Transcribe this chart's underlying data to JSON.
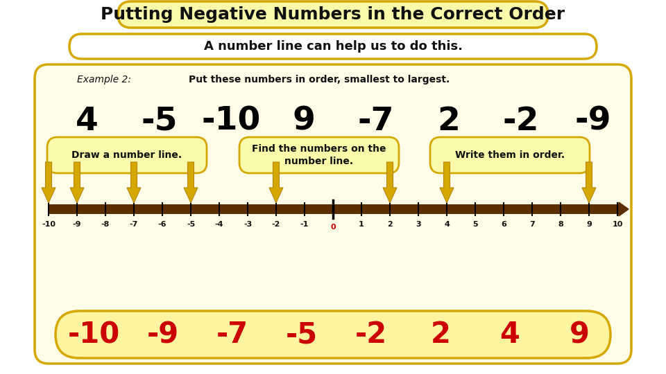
{
  "title": "Putting Negative Numbers in the Correct Order",
  "subtitle": "A number line can help us to do this.",
  "example_label": "Example 2:",
  "example_text": "Put these numbers in order, smallest to largest.",
  "numbers_to_order": [
    "4",
    "-5",
    "-10",
    "9",
    "-7",
    "2",
    "-2",
    "-9"
  ],
  "step1": "Draw a number line.",
  "step2": "Find the numbers on the\nnumber line.",
  "step3": "Write them in order.",
  "number_line_range": [
    -10,
    10
  ],
  "highlighted_numbers": [
    -10,
    -9,
    -7,
    -5,
    -2,
    2,
    4,
    9
  ],
  "answer_numbers": [
    "-10",
    "-9",
    "-7",
    "-5",
    "-2",
    "2",
    "4",
    "9"
  ],
  "bg_color": "#FFFFFF",
  "title_box_fill": "#FAFAAA",
  "title_box_edge": "#D4A800",
  "subtitle_box_fill": "#FFFFFF",
  "subtitle_box_edge": "#D4A800",
  "main_box_fill": "#FFFDE8",
  "main_box_edge": "#D4A800",
  "step_box_fill": "#FAFAAA",
  "step_box_edge": "#D4A800",
  "answer_box_fill": "#FFF5A0",
  "answer_box_edge": "#D4A800",
  "arrow_fill": "#D4A800",
  "arrow_edge": "#B8860B",
  "number_line_color": "#5C2E00",
  "tick_color": "#000000",
  "numbers_color": "#000000",
  "answer_color": "#CC0000",
  "title_fontsize": 18,
  "subtitle_fontsize": 13,
  "example_fontsize": 10,
  "big_numbers_fontsize": 34,
  "step_fontsize": 10,
  "answer_fontsize": 30,
  "nl_label_fontsize": 8
}
